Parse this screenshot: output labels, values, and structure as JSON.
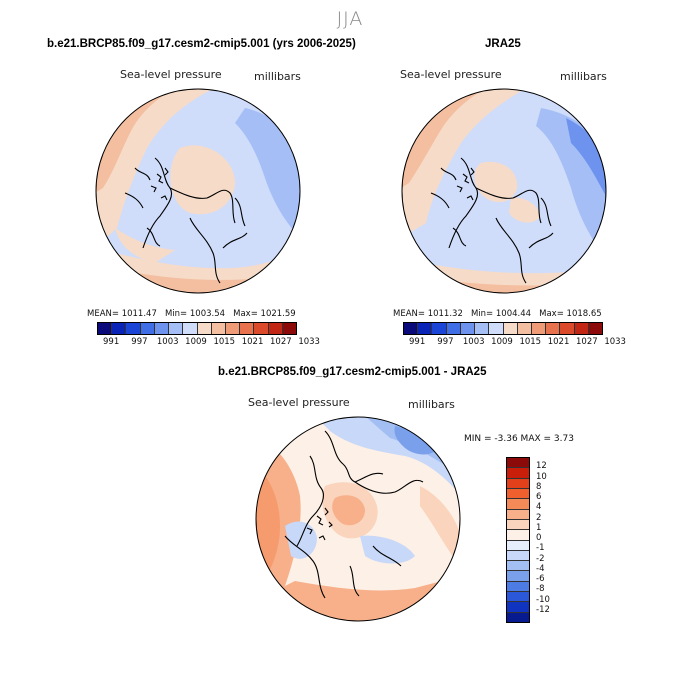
{
  "season": "JJA",
  "panels": [
    {
      "title": "b.e21.BRCP85.f09_g17.cesm2-cmip5.001 (yrs 2006-2025)",
      "variable": "Sea-level pressure",
      "units": "millibars",
      "mean": "MEAN= 1011.47",
      "min": "Min= 1003.54",
      "max": "Max= 1021.59"
    },
    {
      "title": "JRA25",
      "variable": "Sea-level pressure",
      "units": "millibars",
      "mean": "MEAN= 1011.32",
      "min": "Min= 1004.44",
      "max": "Max= 1018.65"
    },
    {
      "title": "b.e21.BRCP85.f09_g17.cesm2-cmip5.001 - JRA25",
      "variable": "Sea-level pressure",
      "units": "millibars",
      "minmax": "MIN =   -3.36 MAX =    3.73"
    }
  ],
  "colorbar_abs": {
    "colors": [
      "#0a0a7a",
      "#0b24b8",
      "#1a45d6",
      "#3f6ee6",
      "#6d93ef",
      "#a5bff6",
      "#cfdcfa",
      "#f6dcc8",
      "#f3bfa0",
      "#ef9b78",
      "#e8714e",
      "#dc4a2c",
      "#c22614",
      "#8c0a0a"
    ],
    "ticks": [
      "991",
      "997",
      "1003",
      "1009",
      "1015",
      "1021",
      "1027",
      "1033"
    ]
  },
  "colorbar_diff": {
    "colors": [
      "#8c0a0a",
      "#c81e0a",
      "#e2401a",
      "#f0602e",
      "#f48a58",
      "#f7b08a",
      "#fad4bc",
      "#fdf0e6",
      "#e6eefc",
      "#c8d8f8",
      "#a2bef3",
      "#7aa0ec",
      "#4d7ce4",
      "#2a58d8",
      "#1034c0",
      "#081a90"
    ],
    "ticks": [
      "12",
      "10",
      "8",
      "6",
      "4",
      "2",
      "1",
      "0",
      "-1",
      "-2",
      "-4",
      "-6",
      "-8",
      "-10",
      "-12"
    ]
  }
}
